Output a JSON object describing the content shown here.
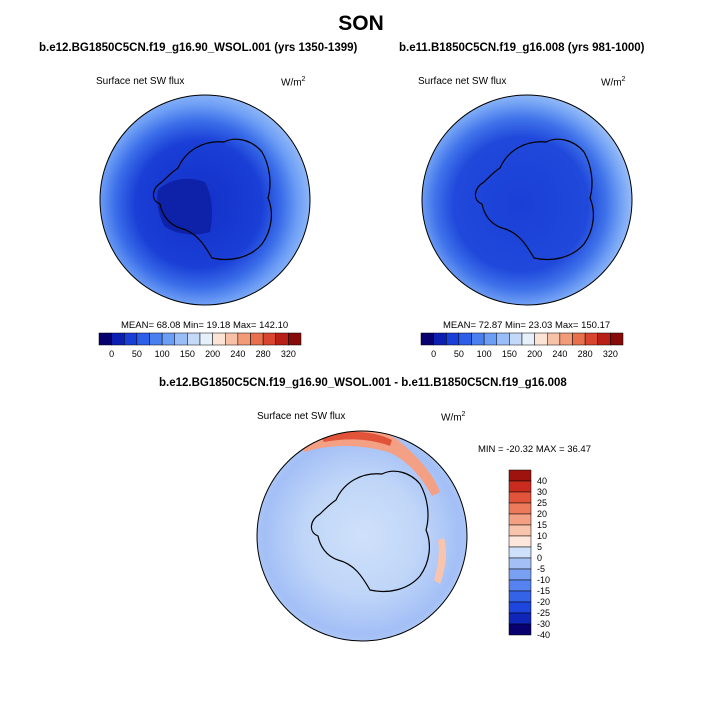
{
  "title": "SON",
  "colors": {
    "cool_scale": [
      "#08006e",
      "#0d1fb0",
      "#1a3fd6",
      "#2d5ee8",
      "#4a7ff0",
      "#6d9ef5",
      "#98bdf7",
      "#c4d9f8",
      "#e6f0fa",
      "#fbe3d6",
      "#f7c1a8",
      "#f29b78",
      "#e8704c",
      "#d84530",
      "#b81f17",
      "#850c08"
    ],
    "diff_scale": [
      "#08006e",
      "#1026b8",
      "#1f46dc",
      "#3563e8",
      "#5683ef",
      "#7aa0f3",
      "#a3bff6",
      "#cfe0fa",
      "#fde6dc",
      "#f9c4ae",
      "#f4a084",
      "#ee7a5c",
      "#e2543a",
      "#c92c1e",
      "#9e130d"
    ]
  },
  "chart_data": [
    {
      "type": "heatmap",
      "title": "b.e12.BG1850C5CN.f19_g16.90_WSOL.001 (yrs 1350-1399)",
      "variable": "Surface net SW flux",
      "units": "W/m",
      "units_superscript": "2",
      "projection": "south-polar-stereographic",
      "stats": "MEAN=  68.08  Min=  19.18  Max= 142.10",
      "colorbar_ticks": [
        "0",
        "50",
        "100",
        "150",
        "200",
        "240",
        "280",
        "320"
      ],
      "colorbar_orientation": "horizontal"
    },
    {
      "type": "heatmap",
      "title": "b.e11.B1850C5CN.f19_g16.008 (yrs 981-1000)",
      "variable": "Surface net SW flux",
      "units": "W/m",
      "units_superscript": "2",
      "projection": "south-polar-stereographic",
      "stats": "MEAN=  72.87  Min=  23.03  Max= 150.17",
      "colorbar_ticks": [
        "0",
        "50",
        "100",
        "150",
        "200",
        "240",
        "280",
        "320"
      ],
      "colorbar_orientation": "horizontal"
    },
    {
      "type": "heatmap",
      "title": "b.e12.BG1850C5CN.f19_g16.90_WSOL.001 - b.e11.B1850C5CN.f19_g16.008",
      "variable": "Surface net SW flux",
      "units": "W/m",
      "units_superscript": "2",
      "projection": "south-polar-stereographic",
      "stats": "MIN = -20.32  MAX =  36.47",
      "colorbar_ticks": [
        "40",
        "30",
        "25",
        "20",
        "15",
        "10",
        "5",
        "0",
        "-5",
        "-10",
        "-15",
        "-20",
        "-25",
        "-30",
        "-40"
      ],
      "colorbar_orientation": "vertical"
    }
  ]
}
